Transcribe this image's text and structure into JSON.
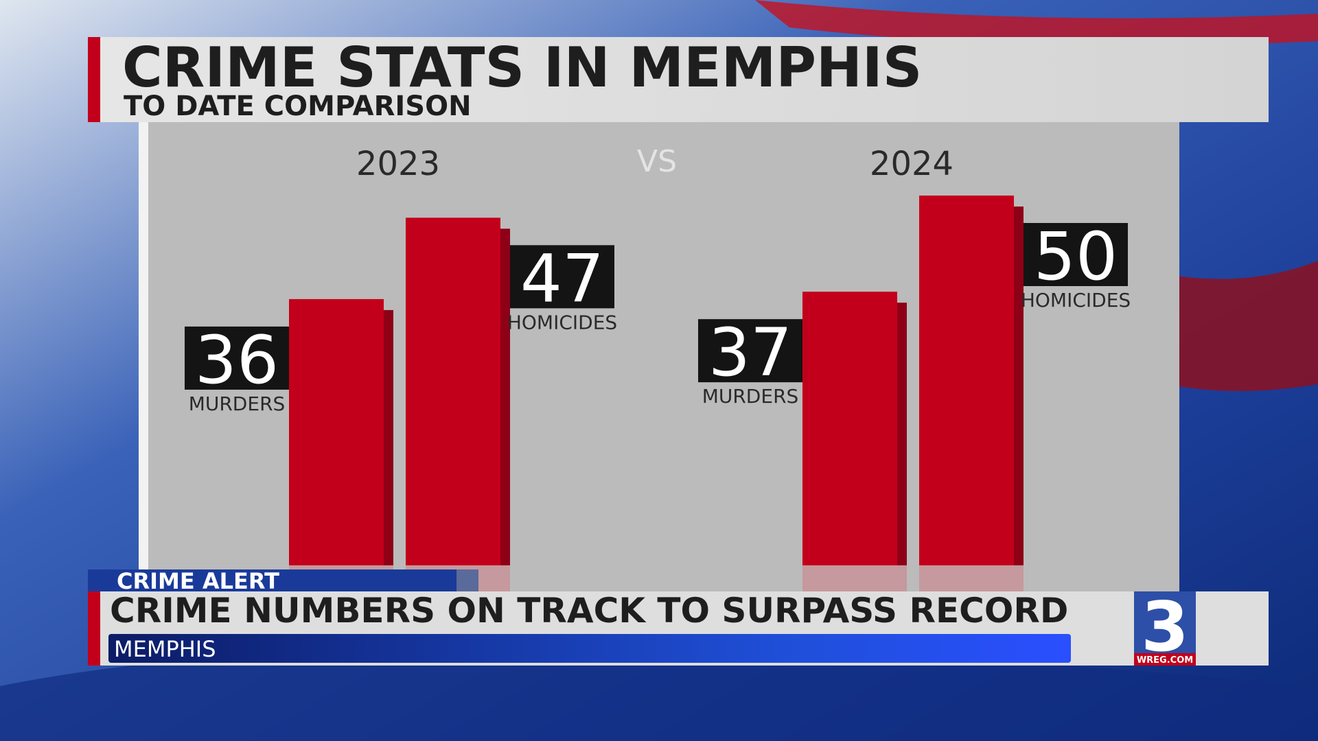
{
  "chart_data": {
    "type": "bar",
    "title": "CRIME STATS IN MEMPHIS",
    "subtitle": "TO DATE COMPARISON",
    "annotation": "VS",
    "categories": [
      "2023",
      "2024"
    ],
    "series": [
      {
        "name": "MURDERS",
        "color": "#c3001b",
        "values": [
          36,
          37
        ]
      },
      {
        "name": "HOMICIDES",
        "color": "#c3001b",
        "values": [
          47,
          50
        ]
      }
    ]
  },
  "lower_third": {
    "label": "CRIME ALERT",
    "headline": "CRIME NUMBERS ON TRACK TO SURPASS RECORD",
    "location": "MEMPHIS"
  },
  "logo": {
    "number": "3",
    "site": "WREG.COM"
  }
}
